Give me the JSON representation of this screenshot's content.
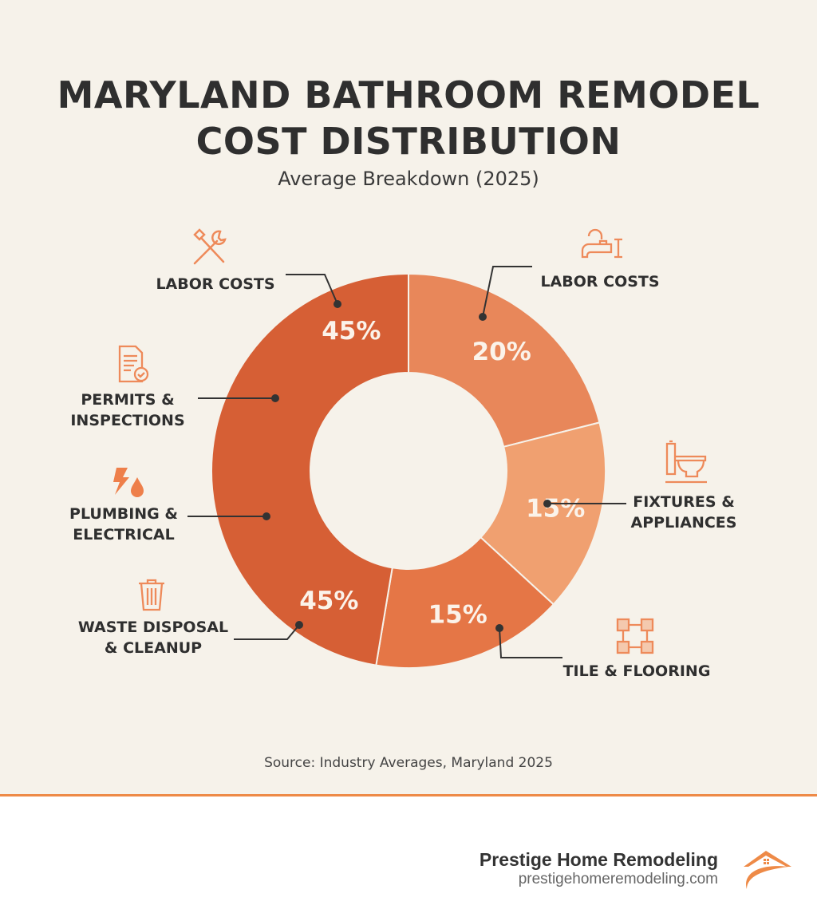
{
  "header": {
    "title_line1": "MARYLAND BATHROOM REMODEL",
    "title_line2": "COST DISTRIBUTION",
    "subtitle": "Average Breakdown (2025)"
  },
  "chart_data": {
    "type": "pie",
    "variant": "donut",
    "title": "MARYLAND BATHROOM REMODEL COST DISTRIBUTION",
    "subtitle": "Average Breakdown (2025)",
    "slices": [
      {
        "value": 20,
        "label": "20%",
        "color": "#e8875a"
      },
      {
        "value": 15,
        "label": "15%",
        "color": "#f0a070"
      },
      {
        "value": 15,
        "label": "15%",
        "color": "#e57646"
      },
      {
        "value": 45,
        "label": "45%",
        "color": "#d65f35",
        "extra_label": "45%"
      }
    ],
    "callouts": {
      "labor_left": {
        "text": "LABOR COSTS",
        "icon": "hammer-wrench-icon"
      },
      "permits": {
        "line1": "PERMITS &",
        "line2": "INSPECTIONS",
        "icon": "document-check-icon"
      },
      "plumbing": {
        "line1": "PLUMBING &",
        "line2": "ELECTRICAL",
        "icon": "bolt-drop-icon"
      },
      "waste": {
        "line1": "WASTE DISPOSAL",
        "line2": "& CLEANUP",
        "icon": "trash-icon"
      },
      "labor_right": {
        "text": "LABOR COSTS",
        "icon": "faucet-icon"
      },
      "fixtures": {
        "line1": "FIXTURES &",
        "line2": "APPLIANCES",
        "icon": "toilet-icon"
      },
      "tile": {
        "text": "TILE & FLOORING",
        "icon": "tiles-icon"
      }
    },
    "accent_color": "#ee8a47"
  },
  "source": "Source: Industry Averages, Maryland 2025",
  "footer": {
    "brand_name": "Prestige Home Remodeling",
    "brand_url": "prestigehomeremodeling.com"
  }
}
